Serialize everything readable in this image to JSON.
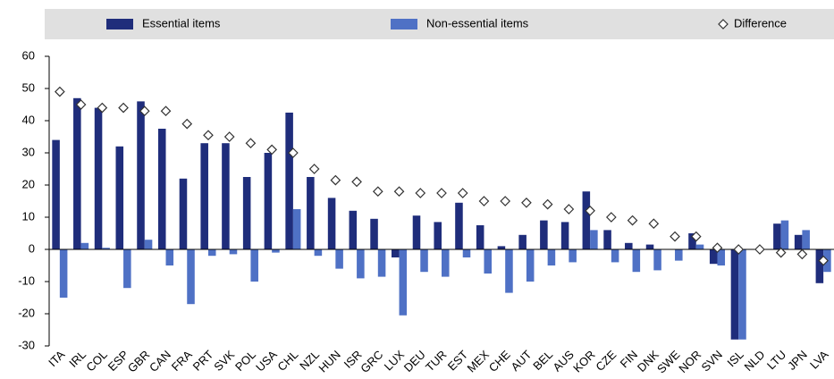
{
  "chart_data": {
    "type": "bar",
    "categories": [
      "ITA",
      "IRL",
      "COL",
      "ESP",
      "GBR",
      "CAN",
      "FRA",
      "PRT",
      "SVK",
      "POL",
      "USA",
      "CHL",
      "NZL",
      "HUN",
      "ISR",
      "GRC",
      "LUX",
      "DEU",
      "TUR",
      "EST",
      "MEX",
      "CHE",
      "AUT",
      "BEL",
      "AUS",
      "KOR",
      "CZE",
      "FIN",
      "DNK",
      "SWE",
      "NOR",
      "SVN",
      "ISL",
      "NLD",
      "LTU",
      "JPN",
      "LVA"
    ],
    "series": [
      {
        "name": "Essential items",
        "color": "#1f2d7b",
        "values": [
          34,
          47,
          44,
          32,
          46,
          37.5,
          22,
          33,
          33,
          22.5,
          30,
          42.5,
          22.5,
          16,
          12,
          9.5,
          -2.5,
          10.5,
          8.5,
          14.5,
          7.5,
          1,
          4.5,
          9,
          8.5,
          18,
          6,
          2,
          1.5,
          0,
          5,
          -4.5,
          -28,
          0,
          8,
          4.5,
          -10.5
        ]
      },
      {
        "name": "Non-essential items",
        "color": "#4f71c5",
        "values": [
          -15,
          2,
          0.5,
          -12,
          3,
          -5,
          -17,
          -2,
          -1.5,
          -10,
          -1,
          12.5,
          -2,
          -6,
          -9,
          -8.5,
          -20.5,
          -7,
          -8.5,
          -2.5,
          -7.5,
          -13.5,
          -10,
          -5,
          -4,
          6,
          -4,
          -7,
          -6.5,
          -3.5,
          1.5,
          -5,
          -28,
          0,
          9,
          6,
          -7
        ]
      },
      {
        "name": "Difference",
        "color": "#ffffff",
        "marker": "diamond",
        "values": [
          49,
          45,
          44,
          44,
          43,
          43,
          39,
          35.5,
          35,
          33,
          31,
          30,
          25,
          21.5,
          21,
          18,
          18,
          17.5,
          17.5,
          17.5,
          15,
          15,
          14.5,
          14,
          12.5,
          12,
          10,
          9,
          8,
          4,
          4,
          0.5,
          0,
          0,
          -1,
          -1.5,
          -3.5
        ]
      }
    ],
    "ylim": [
      -30,
      60
    ],
    "yticks": [
      -30,
      -20,
      -10,
      0,
      10,
      20,
      30,
      40,
      50,
      60
    ],
    "grid": false,
    "legend": "top"
  }
}
